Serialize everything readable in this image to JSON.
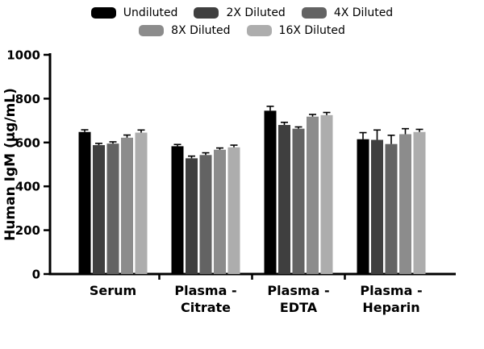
{
  "chart_data": {
    "type": "bar",
    "title": "",
    "ylabel": "Human IgM (µg/mL)",
    "xlabel": "",
    "ylim": [
      0,
      1000
    ],
    "yticks": [
      "0",
      "200",
      "400",
      "600",
      "800",
      "1000"
    ],
    "ytick_values": [
      0,
      200,
      400,
      600,
      800,
      1000
    ],
    "grid": false,
    "legend_position": "top",
    "categories": [
      "Serum",
      "Plasma - Citrate",
      "Plasma - EDTA",
      "Plasma - Heparin"
    ],
    "categories_lines": [
      [
        "Serum"
      ],
      [
        "Plasma -",
        "Citrate"
      ],
      [
        "Plasma -",
        "EDTA"
      ],
      [
        "Plasma -",
        "Heparin"
      ]
    ],
    "legend_rows": [
      [
        0,
        1,
        2
      ],
      [
        3,
        4
      ]
    ],
    "series": [
      {
        "name": "Undiluted",
        "color": "#000000",
        "values": [
          648,
          583,
          745,
          615
        ],
        "errors": [
          10,
          8,
          20,
          30
        ]
      },
      {
        "name": "2X Diluted",
        "color": "#3f3f3f",
        "values": [
          588,
          528,
          680,
          612
        ],
        "errors": [
          8,
          10,
          12,
          45
        ]
      },
      {
        "name": "4X Diluted",
        "color": "#636363",
        "values": [
          595,
          543,
          663,
          593
        ],
        "errors": [
          8,
          10,
          8,
          40
        ]
      },
      {
        "name": "8X Diluted",
        "color": "#8c8c8c",
        "values": [
          622,
          567,
          718,
          638
        ],
        "errors": [
          12,
          8,
          10,
          25
        ]
      },
      {
        "name": "16X Diluted",
        "color": "#adadad",
        "values": [
          645,
          578,
          725,
          648
        ],
        "errors": [
          12,
          10,
          12,
          12
        ]
      }
    ]
  }
}
